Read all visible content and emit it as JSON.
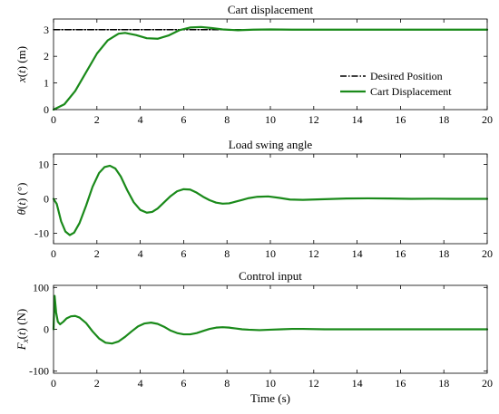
{
  "chart_data": [
    {
      "type": "line",
      "title": "Cart displacement",
      "ylabel": "x(t) (m)",
      "ylabel_math": {
        "main": "x",
        "sub": "",
        "rest": "(t) (m)"
      },
      "xlabel": "",
      "xlim": [
        0,
        20
      ],
      "ylim": [
        0,
        3.4
      ],
      "xticks": [
        "0",
        "2",
        "4",
        "6",
        "8",
        "10",
        "12",
        "14",
        "16",
        "18",
        "20"
      ],
      "yticks": [
        "0",
        "1",
        "2",
        "3"
      ],
      "legend": {
        "placement": "right",
        "entries": [
          "Desired Position",
          "Cart Displacement"
        ]
      },
      "series": [
        {
          "name": "Desired Position",
          "style": "dash-dot",
          "color": "#000000",
          "x": [
            0,
            20
          ],
          "y": [
            3,
            3
          ]
        },
        {
          "name": "Cart Displacement",
          "style": "solid",
          "color": "#1a8a1a",
          "x": [
            0,
            0.5,
            1.0,
            1.5,
            2.0,
            2.5,
            3.0,
            3.3,
            3.8,
            4.3,
            4.8,
            5.3,
            5.8,
            6.3,
            6.8,
            7.3,
            7.8,
            8.5,
            9.2,
            10,
            11,
            12,
            14,
            16,
            18,
            20
          ],
          "y": [
            0,
            0.2,
            0.7,
            1.4,
            2.1,
            2.6,
            2.85,
            2.88,
            2.8,
            2.68,
            2.66,
            2.78,
            2.98,
            3.08,
            3.1,
            3.06,
            3.01,
            2.98,
            3.0,
            3.01,
            3.0,
            3.0,
            3.0,
            3.0,
            3.0,
            3.0
          ]
        }
      ]
    },
    {
      "type": "line",
      "title": "Load swing angle",
      "ylabel": "θ(t) (°)",
      "ylabel_math": {
        "main": "θ",
        "sub": "",
        "rest": "(t) (°)"
      },
      "xlabel": "",
      "xlim": [
        0,
        20
      ],
      "ylim": [
        -13,
        13
      ],
      "xticks": [
        "0",
        "2",
        "4",
        "6",
        "8",
        "10",
        "12",
        "14",
        "16",
        "18",
        "20"
      ],
      "yticks": [
        "-10",
        "0",
        "10"
      ],
      "series": [
        {
          "name": "",
          "style": "solid",
          "color": "#1a8a1a",
          "x": [
            0,
            0.15,
            0.35,
            0.55,
            0.75,
            0.95,
            1.2,
            1.5,
            1.8,
            2.1,
            2.35,
            2.6,
            2.85,
            3.1,
            3.4,
            3.7,
            4.0,
            4.3,
            4.55,
            4.8,
            5.1,
            5.4,
            5.7,
            6.0,
            6.3,
            6.6,
            6.9,
            7.2,
            7.5,
            7.8,
            8.1,
            8.4,
            8.7,
            9.0,
            9.4,
            9.9,
            10.4,
            10.9,
            11.5,
            12.5,
            13.5,
            14.5,
            15.5,
            16.5,
            17.5,
            18.5,
            20
          ],
          "y": [
            0,
            -1.5,
            -6.5,
            -9.5,
            -10.5,
            -9.8,
            -7.0,
            -2.0,
            3.5,
            7.5,
            9.2,
            9.6,
            8.8,
            6.5,
            2.5,
            -1.0,
            -3.2,
            -4.0,
            -3.8,
            -2.8,
            -1.0,
            0.8,
            2.2,
            2.8,
            2.7,
            1.8,
            0.6,
            -0.4,
            -1.1,
            -1.4,
            -1.3,
            -0.8,
            -0.3,
            0.2,
            0.6,
            0.7,
            0.3,
            -0.2,
            -0.3,
            -0.1,
            0.1,
            0.15,
            0.1,
            0.0,
            0.05,
            0.0,
            0.0
          ]
        }
      ]
    },
    {
      "type": "line",
      "title": "Control input",
      "ylabel": "Fx(t) (N)",
      "ylabel_math": {
        "main": "F",
        "sub": "x",
        "rest": "(t) (N)"
      },
      "xlabel": "Time (s)",
      "xlim": [
        0,
        20
      ],
      "ylim": [
        -105,
        105
      ],
      "xticks": [
        "0",
        "2",
        "4",
        "6",
        "8",
        "10",
        "12",
        "14",
        "16",
        "18",
        "20"
      ],
      "yticks": [
        "-100",
        "0",
        "100"
      ],
      "series": [
        {
          "name": "",
          "style": "solid",
          "color": "#1a8a1a",
          "x": [
            0,
            0.05,
            0.12,
            0.2,
            0.3,
            0.45,
            0.6,
            0.8,
            1.0,
            1.2,
            1.5,
            1.8,
            2.1,
            2.4,
            2.7,
            3.0,
            3.3,
            3.6,
            3.9,
            4.2,
            4.5,
            4.8,
            5.1,
            5.4,
            5.7,
            6.0,
            6.3,
            6.6,
            6.9,
            7.2,
            7.5,
            7.8,
            8.1,
            8.4,
            8.7,
            9.0,
            9.5,
            10.0,
            10.5,
            11.0,
            11.5,
            12.5,
            13.5,
            14.5,
            16,
            18,
            20
          ],
          "y": [
            0,
            80,
            40,
            18,
            12,
            18,
            26,
            31,
            32,
            28,
            15,
            -5,
            -22,
            -32,
            -34,
            -29,
            -18,
            -5,
            7,
            14,
            16,
            13,
            6,
            -3,
            -9,
            -12,
            -12,
            -9,
            -4,
            1,
            4,
            5,
            4,
            2,
            0,
            -1,
            -2,
            -1,
            0,
            1,
            1,
            0,
            0,
            0,
            0,
            0,
            0
          ]
        }
      ]
    }
  ]
}
